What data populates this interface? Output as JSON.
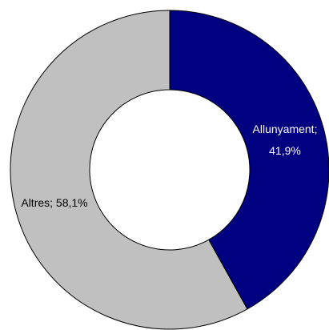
{
  "chart_data": {
    "type": "donut",
    "categories": [
      "Allunyament",
      "Altres"
    ],
    "values": [
      41.9,
      58.1
    ],
    "value_labels": [
      "Allunyament; 41,9%",
      "Altres; 58,1%"
    ],
    "colors": [
      "#000080",
      "#c0c0c0"
    ],
    "label_colors": [
      "#ffffff",
      "#000000"
    ]
  }
}
